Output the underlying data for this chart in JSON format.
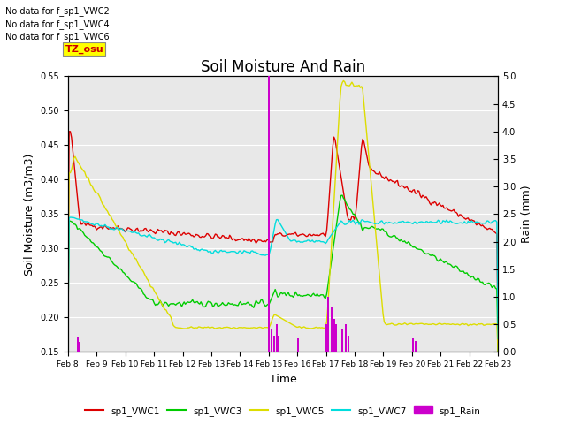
{
  "title": "Soil Moisture And Rain",
  "xlabel": "Time",
  "ylabel_left": "Soil Moisture (m3/m3)",
  "ylabel_right": "Rain (mm)",
  "ylim_left": [
    0.15,
    0.55
  ],
  "ylim_right": [
    0.0,
    5.0
  ],
  "yticks_left": [
    0.15,
    0.2,
    0.25,
    0.3,
    0.35,
    0.4,
    0.45,
    0.5,
    0.55
  ],
  "yticks_right": [
    0.0,
    0.5,
    1.0,
    1.5,
    2.0,
    2.5,
    3.0,
    3.5,
    4.0,
    4.5,
    5.0
  ],
  "xtick_labels": [
    "Feb 8",
    "Feb 9",
    "Feb 10",
    "Feb 11",
    "Feb 12",
    "Feb 13",
    "Feb 14",
    "Feb 15",
    "Feb 16",
    "Feb 17",
    "Feb 18",
    "Feb 19",
    "Feb 20",
    "Feb 21",
    "Feb 22",
    "Feb 23"
  ],
  "no_data_texts": [
    "No data for f_sp1_VWC2",
    "No data for f_sp1_VWC4",
    "No data for f_sp1_VWC6"
  ],
  "tz_label": "TZ_osu",
  "colors": {
    "sp1_VWC1": "#dd0000",
    "sp1_VWC3": "#00cc00",
    "sp1_VWC5": "#dddd00",
    "sp1_VWC7": "#00dddd",
    "sp1_Rain": "#cc00cc"
  },
  "background_color": "#e8e8e8",
  "title_fontsize": 12,
  "axis_label_fontsize": 9,
  "tick_fontsize": 7
}
